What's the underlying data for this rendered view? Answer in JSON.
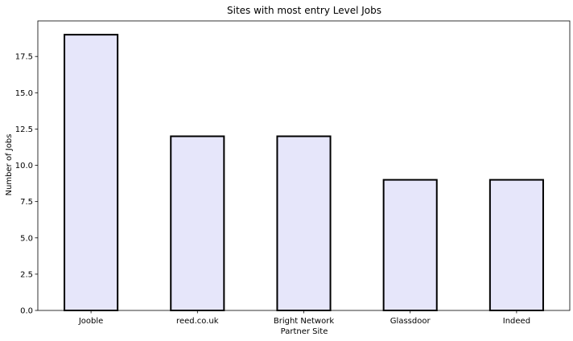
{
  "chart_data": {
    "type": "bar",
    "title": "Sites with most entry Level Jobs",
    "xlabel": "Partner Site",
    "ylabel": "Number of Jobs",
    "categories": [
      "Jooble",
      "reed.co.uk",
      "Bright Network",
      "Glassdoor",
      "Indeed"
    ],
    "values": [
      19,
      12,
      12,
      9,
      9
    ],
    "ylim": [
      0,
      19.95
    ],
    "yticks": [
      0.0,
      2.5,
      5.0,
      7.5,
      10.0,
      12.5,
      15.0,
      17.5
    ],
    "ytick_labels": [
      "0.0",
      "2.5",
      "5.0",
      "7.5",
      "10.0",
      "12.5",
      "15.0",
      "17.5"
    ],
    "grid": false,
    "legend": "none",
    "bar_color": "#e6e6fa",
    "edge_color": "#000000"
  }
}
